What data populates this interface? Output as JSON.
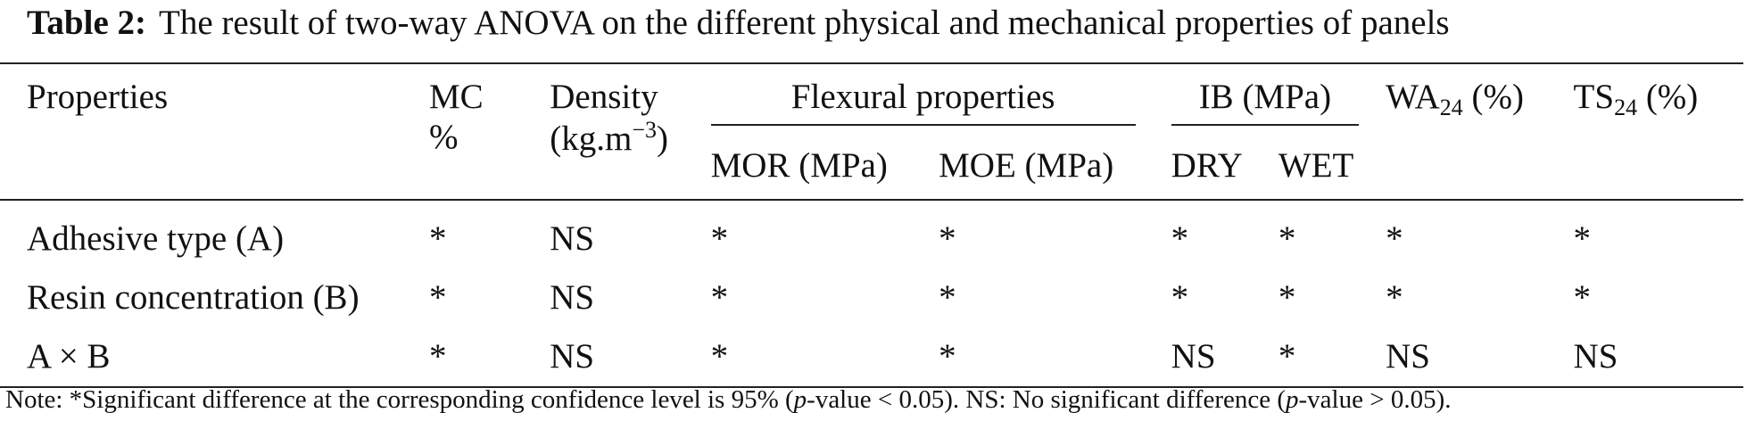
{
  "caption": {
    "label": "Table 2:",
    "text": "The result of two-way ANOVA on the different physical and mechanical properties of panels"
  },
  "header": {
    "properties": "Properties",
    "mc_line1": "MC",
    "mc_line2": "%",
    "density_line1": "Density",
    "density_line2_pre": "(kg.m",
    "density_line2_sup": "−3",
    "density_line2_post": ")",
    "flexural": "Flexural properties",
    "ib": "IB (MPa)",
    "wa_pre": "WA",
    "wa_sub": "24",
    "wa_post": " (%)",
    "ts_pre": "TS",
    "ts_sub": "24",
    "ts_post": " (%)",
    "mor": "MOR (MPa)",
    "moe": "MOE (MPa)",
    "dry": "DRY",
    "wet": "WET"
  },
  "rows": [
    {
      "label": "Adhesive type (A)",
      "mc": "*",
      "density": "NS",
      "mor": "*",
      "moe": "*",
      "dry": "*",
      "wet": "*",
      "wa": "*",
      "ts": "*"
    },
    {
      "label": "Resin concentration (B)",
      "mc": "*",
      "density": "NS",
      "mor": "*",
      "moe": "*",
      "dry": "*",
      "wet": "*",
      "wa": "*",
      "ts": "*"
    },
    {
      "label": "A × B",
      "mc": "*",
      "density": "NS",
      "mor": "*",
      "moe": "*",
      "dry": "NS",
      "wet": "*",
      "wa": "NS",
      "ts": "NS"
    }
  ],
  "note": {
    "t1": "Note: *Significant difference at the corresponding confidence level is 95% (",
    "p1": "p",
    "t2": "-value < 0.05). NS: No significant difference (",
    "p2": "p",
    "t3": "-value > 0.05)."
  }
}
